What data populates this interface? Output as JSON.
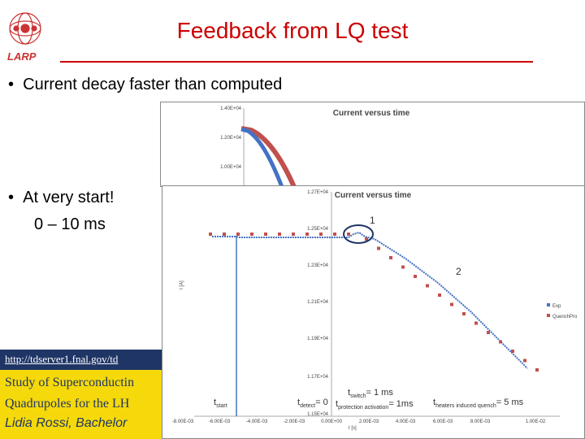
{
  "logo": {
    "text": "LARP"
  },
  "title": "Feedback from LQ test",
  "bullets": [
    {
      "text": "Current decay faster than computed"
    },
    {
      "text": "At very start!",
      "sub": "0 – 10 ms"
    }
  ],
  "reference": {
    "link": "http://tdserver1.fnal.gov/td",
    "line1": "Study of Superconductin",
    "line2": "Quadrupoles for the LH",
    "line3": "Lidia Rossi, Bachelor"
  },
  "chart_data": [
    {
      "type": "line",
      "title": "Current versus time",
      "y_tick_labels": [
        "1.40E+04",
        "1.20E+04",
        "1.00E+04"
      ],
      "series": [
        {
          "color": "#4472c4"
        },
        {
          "color": "#c0504d"
        }
      ]
    },
    {
      "type": "scatter",
      "title": "Current versus time",
      "ylabel": "I [A]",
      "xlabel": "t [s]",
      "x_tick_labels": [
        "-8.00E-03",
        "-6.00E-03",
        "-4.00E-03",
        "-2.00E-03",
        "0.00E+00",
        "2.00E-03",
        "4.00E-03",
        "6.00E-03",
        "8.00E-03",
        "1.00E-02"
      ],
      "y_tick_labels": [
        "1.27E+04",
        "1.25E+04",
        "1.23E+04",
        "1.21E+04",
        "1.19E+04",
        "1.17E+04",
        "1.15E+04"
      ],
      "series": [
        {
          "name": "Exp",
          "color": "#4472c4"
        },
        {
          "name": "QuenchPro",
          "color": "#c0504d"
        }
      ],
      "annotations": {
        "point1": "1",
        "point2": "2",
        "t_start": "t",
        "t_start_sub": "start",
        "t_detect": "t",
        "t_detect_sub": "detect",
        "t_detect_val": "= 0",
        "t_switch_pre": "t",
        "t_switch_sub": "switch",
        "t_switch_val": "= 1 ms",
        "t_prot": "t",
        "t_prot_sub": "protection activation",
        "t_prot_val": "= 1ms",
        "t_heat": "t",
        "t_heat_sub": "heaters induced quench",
        "t_heat_val": "= 5 ms"
      }
    }
  ]
}
